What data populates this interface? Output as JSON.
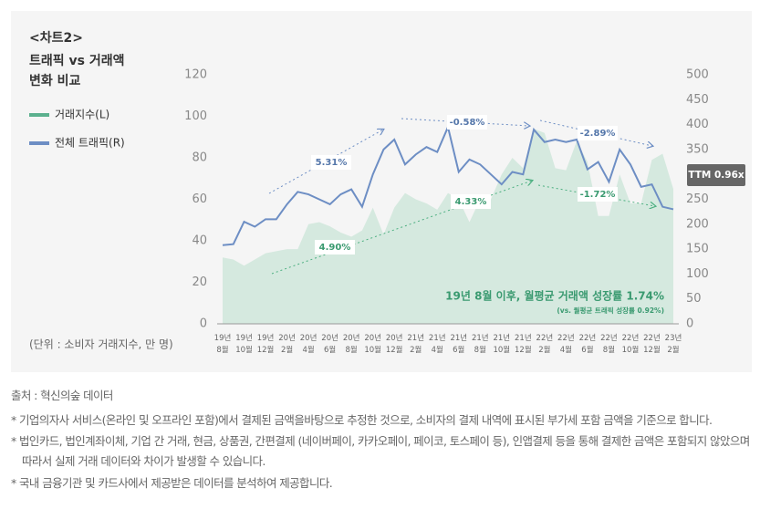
{
  "chart_data": {
    "type": "area_line",
    "title": "<차트2>",
    "subtitle": [
      "트래픽 vs 거래액",
      "변화 비교"
    ],
    "unit_label": "(단위 : 소비자 거래지수, 만 명)",
    "categories": [
      "19년 8월",
      null,
      "19년 10월",
      null,
      "19년 12월",
      null,
      "20년 2월",
      null,
      "20년 4월",
      null,
      "20년 6월",
      null,
      "20년 8월",
      null,
      "20년 10월",
      null,
      "20년 12월",
      null,
      "21년 2월",
      null,
      "21년 4월",
      null,
      "21년 6월",
      null,
      "21년 8월",
      null,
      "21년 10월",
      null,
      "21년 12월",
      null,
      "22년 2월",
      null,
      "22년 4월",
      null,
      "22년 6월",
      null,
      "22년 8월",
      null,
      "22년 10월",
      null,
      "22년 12월",
      null,
      "23년 2월"
    ],
    "series": [
      {
        "name": "거래지수(L)",
        "color": "#d5e9df",
        "legend_color": "#5bb08e",
        "axis": "y",
        "values": [
          32,
          31,
          28,
          31,
          34,
          35,
          36,
          36,
          48,
          49,
          47,
          44,
          42,
          45,
          56,
          43,
          56,
          63,
          60,
          58,
          55,
          63,
          60,
          49,
          60,
          60,
          72,
          80,
          75,
          94,
          92,
          75,
          74,
          88,
          78,
          52,
          52,
          72,
          58,
          58,
          79,
          82,
          65
        ]
      },
      {
        "name": "전체 트래픽(R)",
        "color": "#6d8ec4",
        "axis": "y2",
        "values": [
          158,
          160,
          205,
          195,
          210,
          210,
          240,
          265,
          260,
          250,
          240,
          260,
          270,
          235,
          300,
          350,
          370,
          320,
          340,
          355,
          345,
          395,
          305,
          330,
          320,
          300,
          280,
          305,
          300,
          390,
          365,
          370,
          365,
          370,
          310,
          325,
          285,
          350,
          320,
          275,
          280,
          235,
          230
        ]
      }
    ],
    "ylim": [
      0,
      120
    ],
    "yticks": [
      0,
      20,
      40,
      60,
      80,
      100,
      120
    ],
    "y2lim": [
      0,
      500
    ],
    "y2ticks": [
      0,
      50,
      100,
      150,
      200,
      250,
      300,
      350,
      400,
      450,
      500
    ],
    "annotations": {
      "traffic": [
        "5.31%",
        "-0.58%",
        "-2.89%"
      ],
      "transactions": [
        "4.90%",
        "4.33%",
        "-1.72%"
      ],
      "summary": "19년 8월 이후, 월평균 거래액 성장률 1.74%",
      "summary_sub": "(vs. 월평균 트래픽 성장률 0.92%)",
      "ttm": "TTM 0.96x"
    }
  },
  "footer": {
    "source": "출처 : 혁신의숲 데이터",
    "notes": [
      "* 기업의자사 서비스(온라인 및 오프라인 포함)에서 결제된 금액을바탕으로 추정한 것으로, 소비자의 결제 내역에 표시된 부가세 포함 금액을 기준으로 합니다.",
      "* 법인카드, 법인계좌이체, 기업 간 거래, 현금, 상품권, 간편결제 (네이버페이, 카카오페이, 페이코, 토스페이 등), 인앱결제 등을 통해 결제한 금액은 포함되지 않았으며 따라서 실제 거래 데이터와 차이가 발생할 수 있습니다.",
      "* 국내 금융기관 및 카드사에서 제공받은 데이터를 분석하여 제공합니다."
    ]
  }
}
